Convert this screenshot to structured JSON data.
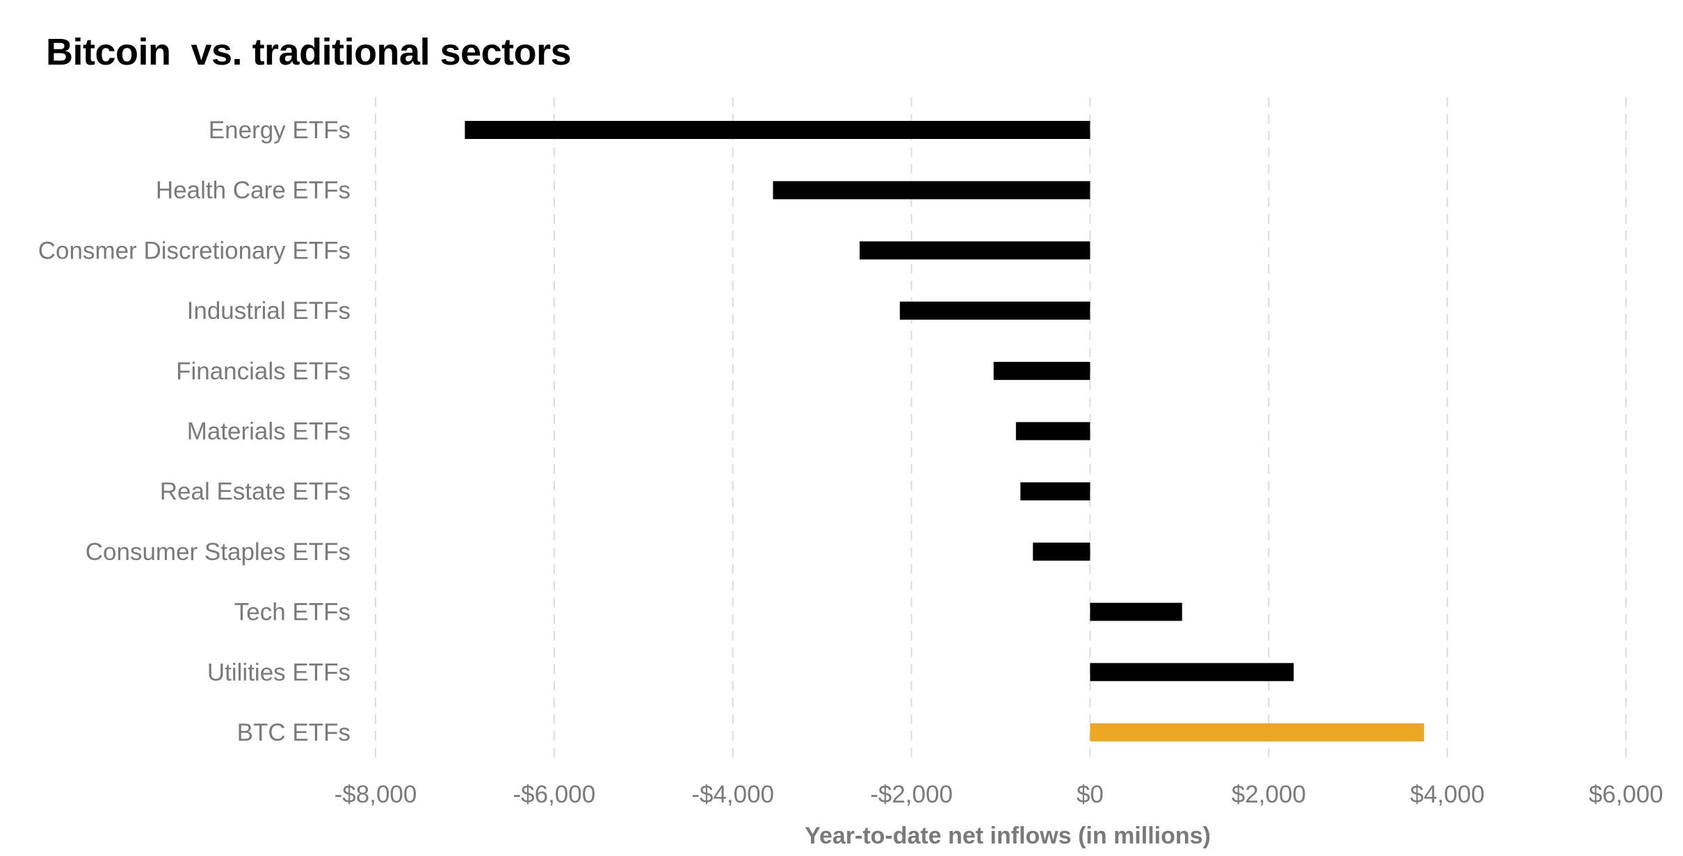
{
  "chart_data": {
    "type": "bar",
    "orientation": "horizontal",
    "title": "Bitcoin  vs. traditional sectors",
    "xlabel": "Year-to-date net inflows (in millions)",
    "ylabel": "",
    "xlim": [
      -8000,
      6000
    ],
    "xticks": [
      -8000,
      -6000,
      -4000,
      -2000,
      0,
      2000,
      4000,
      6000
    ],
    "xtick_labels": [
      "-$8,000",
      "-$6,000",
      "-$4,000",
      "-$2,000",
      "$0",
      "$2,000",
      "$4,000",
      "$6,000"
    ],
    "grid": "vertical-dashed",
    "categories": [
      "Energy ETFs",
      "Health Care ETFs",
      "Consmer Discretionary ETFs",
      "Industrial ETFs",
      "Financials ETFs",
      "Materials ETFs",
      "Real Estate ETFs",
      "Consumer Staples ETFs",
      "Tech ETFs",
      "Utilities ETFs",
      "BTC ETFs"
    ],
    "values": [
      -7000,
      -3550,
      -2580,
      -2130,
      -1080,
      -830,
      -780,
      -640,
      1030,
      2280,
      3740
    ],
    "colors": [
      "#000000",
      "#000000",
      "#000000",
      "#000000",
      "#000000",
      "#000000",
      "#000000",
      "#000000",
      "#000000",
      "#000000",
      "#eda823"
    ]
  }
}
